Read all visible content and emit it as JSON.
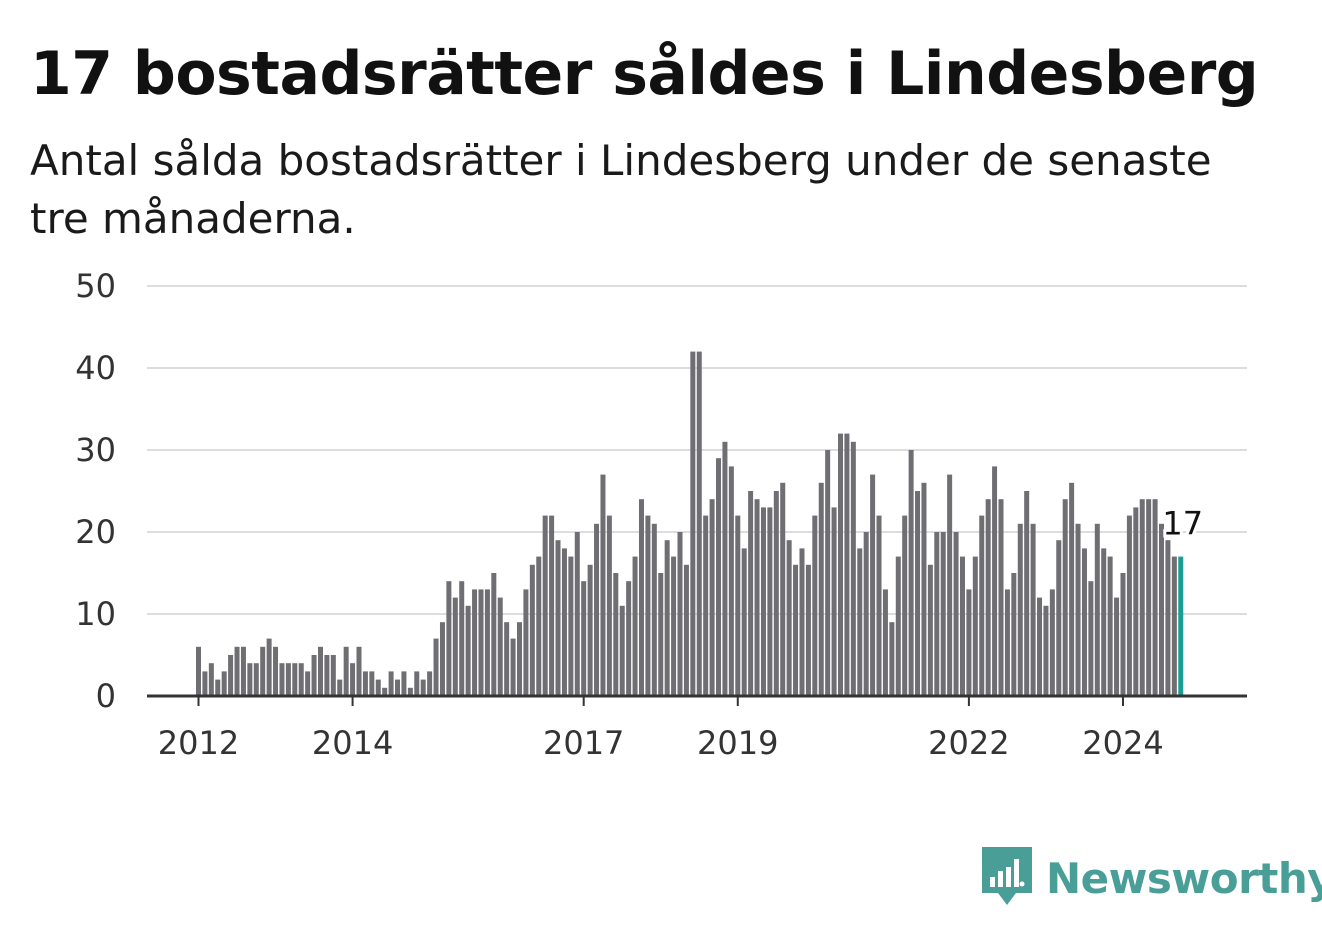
{
  "title": "17 bostadsrätter såldes i Lindesberg",
  "subtitle": "Antal sålda bostadsrätter i Lindesberg under de senaste tre månaderna.",
  "brand": {
    "name": "Newsworthy",
    "color": "#4a9e98",
    "icon": "newsworthy-logo-icon"
  },
  "colors": {
    "bar": "#6e6e73",
    "highlight": "#1a9e94",
    "grid": "#dddddd",
    "axis": "#333333"
  },
  "chart_data": {
    "type": "bar",
    "title": "17 bostadsrätter såldes i Lindesberg",
    "subtitle": "Antal sålda bostadsrätter i Lindesberg under de senaste tre månaderna.",
    "xlabel": "",
    "ylabel": "",
    "ylim": [
      0,
      50
    ],
    "yticks": [
      0,
      10,
      20,
      30,
      40,
      50
    ],
    "xticks": [
      "2012",
      "2014",
      "2017",
      "2019",
      "2022",
      "2024"
    ],
    "xtick_positions": [
      0,
      24,
      60,
      84,
      120,
      144
    ],
    "grid": true,
    "legend": "none",
    "highlight_label": "17",
    "values": [
      6,
      3,
      4,
      2,
      3,
      5,
      6,
      6,
      4,
      4,
      6,
      7,
      6,
      4,
      4,
      4,
      4,
      3,
      5,
      6,
      5,
      5,
      2,
      6,
      4,
      6,
      3,
      3,
      2,
      1,
      3,
      2,
      3,
      1,
      3,
      2,
      3,
      7,
      9,
      14,
      12,
      14,
      11,
      13,
      13,
      13,
      15,
      12,
      9,
      7,
      9,
      13,
      16,
      17,
      22,
      22,
      19,
      18,
      17,
      20,
      14,
      16,
      21,
      27,
      22,
      15,
      11,
      14,
      17,
      24,
      22,
      21,
      15,
      19,
      17,
      20,
      16,
      42,
      42,
      22,
      24,
      29,
      31,
      28,
      22,
      18,
      25,
      24,
      23,
      23,
      25,
      26,
      19,
      16,
      18,
      16,
      22,
      26,
      30,
      23,
      32,
      32,
      31,
      18,
      20,
      27,
      22,
      13,
      9,
      17,
      22,
      30,
      25,
      26,
      16,
      20,
      20,
      27,
      20,
      17,
      13,
      17,
      22,
      24,
      28,
      24,
      13,
      15,
      21,
      25,
      21,
      12,
      11,
      13,
      19,
      24,
      26,
      21,
      18,
      14,
      21,
      18,
      17,
      12,
      15,
      22,
      23,
      24,
      24,
      24,
      21,
      19,
      17,
      17
    ]
  }
}
